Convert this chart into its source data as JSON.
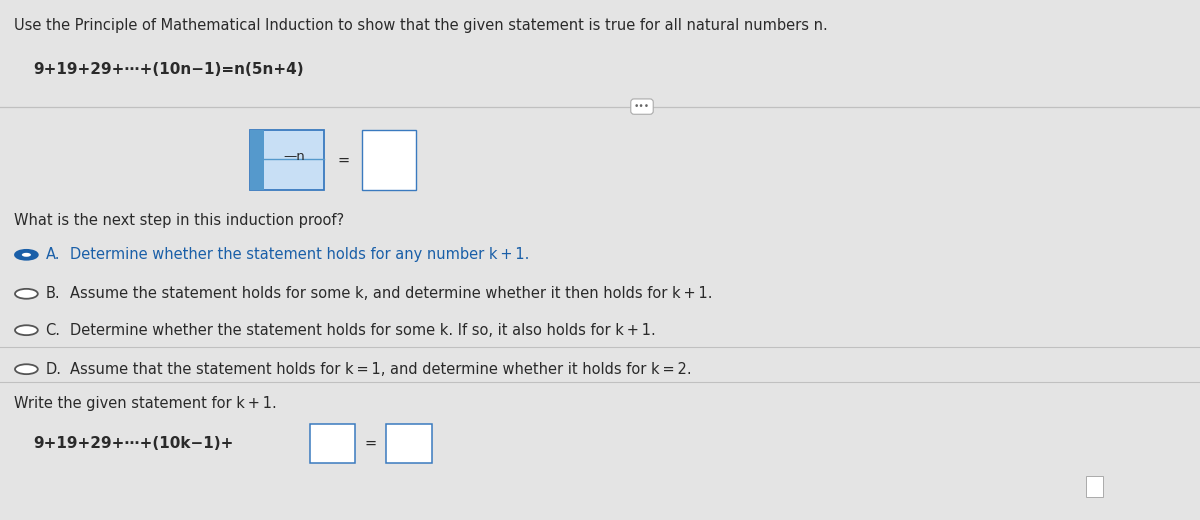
{
  "bg_color": "#e4e4e4",
  "title_text": "Use the Principle of Mathematical Induction to show that the given statement is true for all natural numbers n.",
  "formula_line": "9+19+29+⋯+(10n−1)=n(5n+4)",
  "question_text": "What is the next step in this induction proof?",
  "options": [
    {
      "label": "A.",
      "text": "Determine whether the statement holds for any number k + 1.",
      "selected": true
    },
    {
      "label": "B.",
      "text": "Assume the statement holds for some k, and determine whether it then holds for k + 1.",
      "selected": false
    },
    {
      "label": "C.",
      "text": "Determine whether the statement holds for some k. If so, it also holds for k + 1.",
      "selected": false
    },
    {
      "label": "D.",
      "text": "Assume that the statement holds for k = 1, and determine whether it holds for k = 2.",
      "selected": false,
      "boxed": true
    }
  ],
  "bottom_label": "Write the given statement for k + 1.",
  "bottom_formula": "9+19+29+⋯+(10k−1)+",
  "font_size_title": 10.5,
  "font_size_body": 10.5,
  "font_size_formula": 11,
  "text_color": "#2a2a2a",
  "selected_color": "#1a5fa8",
  "radio_stroke": "#555555",
  "box_border_color": "#3a7abf",
  "box_bg_color": "#c8dff5",
  "box_stripe_color": "#5599cc",
  "input_box_border": "#3a7abf",
  "sep_color": "#c0c0c0",
  "dots_color": "#666666"
}
